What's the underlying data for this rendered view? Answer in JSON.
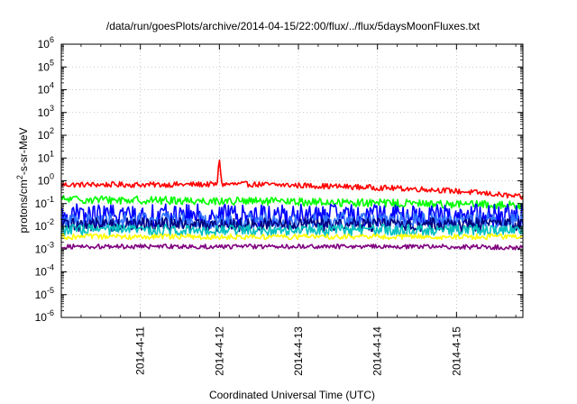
{
  "chart_data": {
    "type": "line",
    "title": "/data/run/goesPlots/archive/2014-04-15/22:00/flux/../flux/5daysMoonFluxes.txt",
    "xlabel": "Coordinated Universal Time (UTC)",
    "ylabel": "protons/cm2-s-sr-MeV",
    "ylabel_parts": {
      "base": "protons/cm",
      "sup": "2",
      "rest": "-s-sr-MeV"
    },
    "yscale": "log",
    "ylim": [
      1e-06,
      1000000.0
    ],
    "y_ticks": [
      {
        "exp": "-6"
      },
      {
        "exp": "-5"
      },
      {
        "exp": "-4"
      },
      {
        "exp": "-3"
      },
      {
        "exp": "-2"
      },
      {
        "exp": "-1"
      },
      {
        "exp": "0"
      },
      {
        "exp": "1"
      },
      {
        "exp": "2"
      },
      {
        "exp": "3"
      },
      {
        "exp": "4"
      },
      {
        "exp": "5"
      },
      {
        "exp": "6"
      }
    ],
    "y_tick_base": "10",
    "x_ticks": [
      {
        "label": "2014-4-11",
        "day": 1
      },
      {
        "label": "2014-4-12",
        "day": 2
      },
      {
        "label": "2014-4-13",
        "day": 3
      },
      {
        "label": "2014-4-14",
        "day": 4
      },
      {
        "label": "2014-4-15",
        "day": 5
      }
    ],
    "xlim_days": [
      0,
      5.84
    ],
    "grid": true,
    "series": [
      {
        "color": "#ff0000",
        "level": 0.75,
        "noise": 0.12,
        "trend": [
          0.9,
          0.9,
          0.95,
          0.75,
          0.55,
          0.25
        ],
        "spike_day": 2.0,
        "spike_value": 9.0
      },
      {
        "color": "#00ff00",
        "level": 0.14,
        "noise": 0.18,
        "trend": [
          1.1,
          1.0,
          0.9,
          0.8,
          0.7,
          0.6
        ]
      },
      {
        "color": "#0000ff",
        "level": 0.03,
        "noise": 0.5,
        "trend": [
          1,
          1,
          1,
          1,
          1,
          1
        ]
      },
      {
        "color": "#3377ff",
        "level": 0.018,
        "noise": 0.35,
        "trend": [
          1,
          1,
          1,
          1,
          1,
          1
        ]
      },
      {
        "color": "#000080",
        "level": 0.012,
        "noise": 0.3,
        "trend": [
          1,
          1,
          1,
          1,
          1,
          1
        ]
      },
      {
        "color": "#00c0c0",
        "level": 0.007,
        "noise": 0.25,
        "trend": [
          1,
          1,
          1,
          1,
          1,
          1
        ]
      },
      {
        "color": "#ffff00",
        "level": 0.0035,
        "noise": 0.12,
        "trend": [
          1,
          1,
          1,
          1,
          1,
          1
        ]
      },
      {
        "color": "#800080",
        "level": 0.0013,
        "noise": 0.1,
        "trend": [
          1,
          1,
          1,
          1,
          1,
          0.9
        ]
      }
    ]
  }
}
